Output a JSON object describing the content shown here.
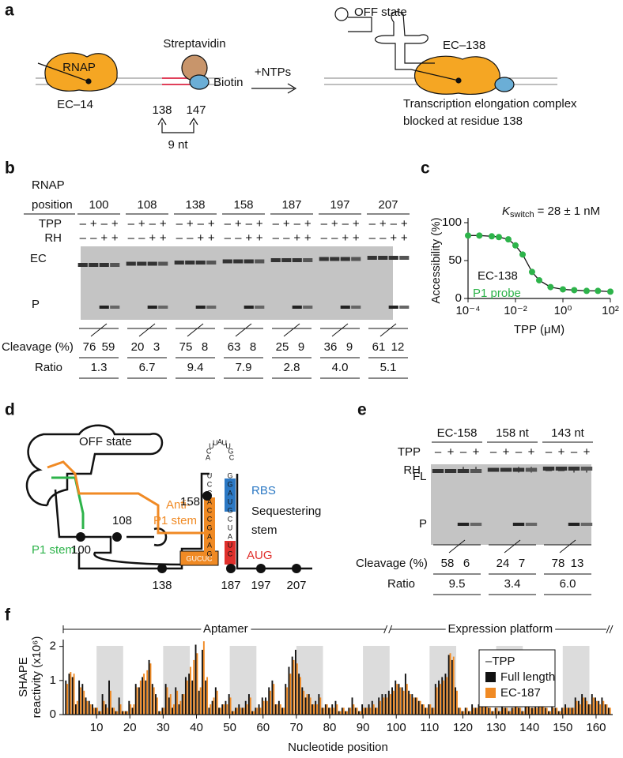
{
  "figure": {
    "panel_labels": [
      "a",
      "b",
      "c",
      "d",
      "e",
      "f"
    ],
    "a": {
      "rnap": "RNAP",
      "ec14": "EC–14",
      "streptavidin": "Streptavidin",
      "biotin": "Biotin",
      "pos138": "138",
      "pos147": "147",
      "spacing": "9 nt",
      "ntps": "+NTPs",
      "off_state": "OFF state",
      "ec138": "EC–138",
      "caption_1": "Transcription elongation complex",
      "caption_2": "blocked at residue 138"
    },
    "b": {
      "header_1": "RNAP",
      "header_2": "position",
      "tpp": "TPP",
      "rh": "RH",
      "ec": "EC",
      "p": "P",
      "cleavage_label": "Cleavage (%)",
      "ratio_label": "Ratio",
      "positions": [
        100,
        108,
        138,
        158,
        187,
        197,
        207
      ],
      "tpp_signs": [
        "–",
        "+",
        "–",
        "+"
      ],
      "rh_signs": [
        "–",
        "–",
        "+",
        "+"
      ],
      "cleavage": [
        [
          76,
          59
        ],
        [
          20,
          3
        ],
        [
          75,
          8
        ],
        [
          63,
          8
        ],
        [
          25,
          9
        ],
        [
          36,
          9
        ],
        [
          61,
          12
        ]
      ],
      "ratio": [
        "1.3",
        "6.7",
        "9.4",
        "7.9",
        "2.8",
        "4.0",
        "5.1"
      ]
    },
    "d": {
      "off_state": "OFF state",
      "p1_stem": "P1 stem",
      "anti_1": "Anti-",
      "anti_2": "P1 stem",
      "rbs": "RBS",
      "seq_1": "Sequestering",
      "seq_2": "stem",
      "aug": "AUG",
      "n158": "158",
      "n108": "108",
      "n100": "100",
      "n138": "138",
      "n187": "187",
      "n197": "197",
      "n207": "207",
      "linker": "GUCUC",
      "loop": [
        "A",
        "C",
        "U",
        "U",
        "A",
        "U",
        "U",
        "G",
        "C"
      ],
      "stem_left": [
        "U",
        "C",
        "C",
        "A",
        "C",
        "C",
        "G",
        "A",
        "A",
        "G"
      ],
      "stem_right": [
        "G",
        "G",
        "A",
        "U",
        "G",
        "C",
        "U",
        "A",
        "U",
        "C"
      ]
    },
    "e": {
      "lanes": [
        "EC-158",
        "158 nt",
        "143 nt"
      ],
      "tpp": "TPP",
      "rh": "RH",
      "fl": "FL",
      "p": "P",
      "cleavage_label": "Cleavage (%)",
      "ratio_label": "Ratio",
      "tpp_signs": [
        "–",
        "+",
        "–",
        "+"
      ],
      "rh_signs": [
        "–",
        "–",
        "+",
        "+"
      ],
      "cleavage": [
        [
          58,
          6
        ],
        [
          24,
          7
        ],
        [
          78,
          13
        ]
      ],
      "ratio": [
        "9.5",
        "3.4",
        "6.0"
      ]
    }
  },
  "chart_data": [
    {
      "type": "scatter",
      "title": "= 28 ± 1 nM",
      "title_symbol": "K",
      "title_subscript": "switch",
      "xlabel": "TPP (μM)",
      "ylabel": "Accessibility (%)",
      "xlog": true,
      "annotation": "EC-138",
      "x": [
        0.0001,
        0.0003,
        0.001,
        0.002,
        0.005,
        0.01,
        0.02,
        0.05,
        0.1,
        0.3,
        1,
        3,
        10,
        30,
        100
      ],
      "series": [
        {
          "name": "P1 probe",
          "color": "#2db34a",
          "values": [
            83,
            83,
            82,
            81,
            78,
            70,
            58,
            35,
            24,
            15,
            12,
            11,
            10,
            10,
            9
          ]
        }
      ],
      "xlim": [
        0.0001,
        100
      ],
      "xticks": [
        {
          "value": 0.0001,
          "label": "10⁻⁴"
        },
        {
          "value": 0.01,
          "label": "10⁻²"
        },
        {
          "value": 1,
          "label": "10⁰"
        },
        {
          "value": 100,
          "label": "10²"
        }
      ],
      "ylim": [
        0,
        100
      ],
      "yticks": [
        0,
        50,
        100
      ]
    },
    {
      "type": "bar",
      "xlabel": "Nucleotide position",
      "ylabel_1": "SHAPE",
      "ylabel_2": "reactivity (x10⁶)",
      "annotations": [
        "Aptamer",
        "Expression platform"
      ],
      "legend_title": "–TPP",
      "x": [
        1,
        2,
        3,
        4,
        5,
        6,
        7,
        8,
        9,
        10,
        11,
        12,
        13,
        14,
        15,
        16,
        17,
        18,
        19,
        20,
        21,
        22,
        23,
        24,
        25,
        26,
        27,
        28,
        29,
        30,
        31,
        32,
        33,
        34,
        35,
        36,
        37,
        38,
        39,
        40,
        41,
        42,
        43,
        44,
        45,
        46,
        47,
        48,
        49,
        50,
        51,
        52,
        53,
        54,
        55,
        56,
        57,
        58,
        59,
        60,
        61,
        62,
        63,
        64,
        65,
        66,
        67,
        68,
        69,
        70,
        71,
        72,
        73,
        74,
        75,
        76,
        77,
        78,
        79,
        80,
        81,
        82,
        83,
        84,
        85,
        86,
        87,
        88,
        89,
        90,
        91,
        92,
        93,
        94,
        95,
        96,
        97,
        98,
        99,
        100,
        101,
        102,
        103,
        104,
        105,
        106,
        107,
        108,
        109,
        110,
        111,
        112,
        113,
        114,
        115,
        116,
        117,
        118,
        119,
        120,
        121,
        122,
        123,
        124,
        125,
        126,
        127,
        128,
        129,
        130,
        131,
        132,
        133,
        134,
        135,
        136,
        137,
        138,
        139,
        140,
        141,
        142,
        143,
        144,
        145,
        146,
        147,
        148,
        149,
        150,
        151,
        152,
        153,
        154,
        155,
        156,
        157,
        158,
        159,
        160,
        161,
        162,
        163,
        164
      ],
      "series": [
        {
          "name": "Full length",
          "color": "#111111",
          "values": [
            1.0,
            1.2,
            1.1,
            0.3,
            1.0,
            0.9,
            0.5,
            0.4,
            0.3,
            0.2,
            0.1,
            0.6,
            0.3,
            1.0,
            0.2,
            0.1,
            0.5,
            0.1,
            0.1,
            0.4,
            0.2,
            0.9,
            0.8,
            1.1,
            1.0,
            1.6,
            0.9,
            0.6,
            0.1,
            0.2,
            0.9,
            0.5,
            0.2,
            0.8,
            0.3,
            0.6,
            1.1,
            1.2,
            1.0,
            2.05,
            0.7,
            1.9,
            1.0,
            0.2,
            0.4,
            0.8,
            0.2,
            0.3,
            0.4,
            0.6,
            0.1,
            0.2,
            0.3,
            0.2,
            0.4,
            0.6,
            0.1,
            0.2,
            0.3,
            0.5,
            0.5,
            0.8,
            1.0,
            0.3,
            0.4,
            0.2,
            0.9,
            1.4,
            1.7,
            1.9,
            1.2,
            0.8,
            0.5,
            0.6,
            0.3,
            0.4,
            0.6,
            0.2,
            0.3,
            0.2,
            0.3,
            0.4,
            0.1,
            0.2,
            0.1,
            0.2,
            0.5,
            0.2,
            0.1,
            0.3,
            0.2,
            0.3,
            0.4,
            0.2,
            0.5,
            0.6,
            0.6,
            0.7,
            0.8,
            1.0,
            0.9,
            0.8,
            1.2,
            0.7,
            0.6,
            0.5,
            0.4,
            0.3,
            0.2,
            0.3,
            0.2,
            0.9,
            1.0,
            1.1,
            1.2,
            1.75,
            1.6,
            0.8,
            0.2,
            0.1,
            0.2,
            0.1,
            0.3,
            0.2,
            0.3,
            0.5,
            0.4,
            0.2,
            0.1,
            0.2,
            0.1,
            0.3,
            0.2,
            0.1,
            0.2,
            0.3,
            0.2,
            0.1,
            0.4,
            0.3,
            0.2,
            0.3,
            0.6,
            0.4,
            0.2,
            0.1,
            0.3,
            0.2,
            0.1,
            0.2,
            0.3,
            0.2,
            0.2,
            0.5,
            0.4,
            0.6,
            0.5,
            0.3,
            0.6,
            0.5,
            0.4,
            0.5,
            0.3,
            0.2
          ]
        },
        {
          "name": "EC-187",
          "color": "#f08a24",
          "values": [
            0.9,
            1.25,
            1.2,
            0.4,
            0.8,
            0.7,
            0.4,
            0.3,
            0.2,
            0.2,
            0.1,
            0.4,
            0.2,
            0.7,
            0.2,
            0.1,
            0.3,
            0.1,
            0.1,
            0.3,
            0.3,
            0.8,
            1.0,
            1.2,
            1.3,
            1.5,
            0.8,
            0.5,
            0.1,
            0.2,
            0.8,
            0.6,
            0.3,
            0.7,
            0.4,
            0.6,
            1.0,
            1.4,
            1.6,
            1.8,
            0.8,
            2.15,
            1.1,
            0.3,
            0.5,
            0.7,
            0.2,
            0.3,
            0.3,
            0.5,
            0.1,
            0.2,
            0.2,
            0.2,
            0.3,
            0.5,
            0.1,
            0.2,
            0.2,
            0.4,
            0.4,
            0.7,
            0.9,
            0.3,
            0.3,
            0.2,
            0.8,
            1.2,
            1.6,
            1.5,
            1.1,
            0.7,
            0.6,
            0.5,
            0.3,
            0.3,
            0.5,
            0.2,
            0.3,
            0.2,
            0.2,
            0.3,
            0.1,
            0.2,
            0.1,
            0.2,
            0.3,
            0.2,
            0.1,
            0.2,
            0.2,
            0.2,
            0.3,
            0.2,
            0.4,
            0.5,
            0.5,
            0.6,
            0.7,
            0.9,
            0.8,
            0.7,
            0.9,
            0.6,
            0.5,
            0.5,
            0.4,
            0.3,
            0.2,
            0.3,
            0.2,
            0.8,
            0.9,
            1.0,
            1.1,
            1.8,
            1.7,
            0.7,
            0.2,
            0.1,
            0.2,
            0.1,
            0.2,
            0.2,
            0.3,
            0.4,
            0.4,
            0.2,
            0.1,
            0.2,
            0.1,
            0.2,
            0.2,
            0.1,
            0.2,
            0.3,
            0.2,
            0.1,
            0.3,
            0.2,
            0.2,
            0.2,
            0.5,
            0.3,
            0.2,
            0.1,
            0.2,
            0.2,
            0.1,
            0.2,
            0.2,
            0.2,
            0.2,
            0.4,
            0.3,
            0.5,
            0.4,
            0.3,
            0.5,
            0.4,
            0.3,
            0.4,
            0.3,
            0.2
          ]
        }
      ],
      "xlim": [
        0,
        165
      ],
      "xticks": [
        10,
        20,
        30,
        40,
        50,
        60,
        70,
        80,
        90,
        100,
        110,
        120,
        130,
        140,
        150,
        160
      ],
      "ylim": [
        0,
        2.2
      ],
      "yticks": [
        0,
        1,
        2
      ]
    }
  ]
}
